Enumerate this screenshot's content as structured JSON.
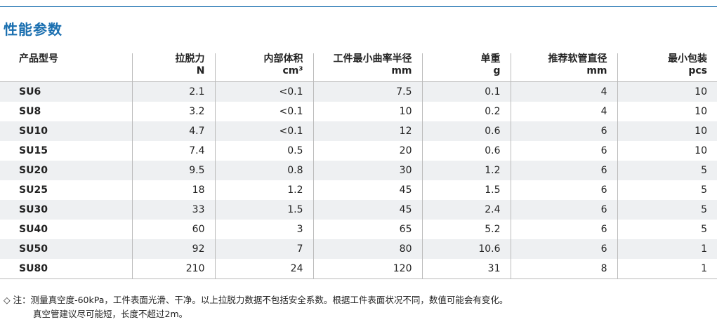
{
  "title": "性能参数",
  "table": {
    "headers": [
      {
        "label": "产品型号",
        "unit": ""
      },
      {
        "label": "拉脱力",
        "unit": "N"
      },
      {
        "label": "内部体积",
        "unit": "cm³"
      },
      {
        "label": "工件最小曲率半径",
        "unit": "mm"
      },
      {
        "label": "单重",
        "unit": "g"
      },
      {
        "label": "推荐软管直径",
        "unit": "mm"
      },
      {
        "label": "最小包装",
        "unit": "pcs"
      }
    ],
    "rows": [
      [
        "SU6",
        "2.1",
        "<0.1",
        "7.5",
        "0.1",
        "4",
        "10"
      ],
      [
        "SU8",
        "3.2",
        "<0.1",
        "10",
        "0.2",
        "4",
        "10"
      ],
      [
        "SU10",
        "4.7",
        "<0.1",
        "12",
        "0.6",
        "6",
        "10"
      ],
      [
        "SU15",
        "7.4",
        "0.5",
        "20",
        "0.6",
        "6",
        "10"
      ],
      [
        "SU20",
        "9.5",
        "0.8",
        "30",
        "1.2",
        "6",
        "5"
      ],
      [
        "SU25",
        "18",
        "1.2",
        "45",
        "1.5",
        "6",
        "5"
      ],
      [
        "SU30",
        "33",
        "1.5",
        "45",
        "2.4",
        "6",
        "5"
      ],
      [
        "SU40",
        "60",
        "3",
        "65",
        "5.2",
        "6",
        "5"
      ],
      [
        "SU50",
        "92",
        "7",
        "80",
        "10.6",
        "6",
        "1"
      ],
      [
        "SU80",
        "210",
        "24",
        "120",
        "31",
        "8",
        "1"
      ]
    ]
  },
  "note": {
    "line1": "◇ 注：测量真空度-60kPa，工件表面光滑、干净。以上拉脱力数据不包括安全系数。根据工件表面状况不同，数值可能会有变化。",
    "line2": "真空管建议尽可能短，长度不超过2m。"
  }
}
